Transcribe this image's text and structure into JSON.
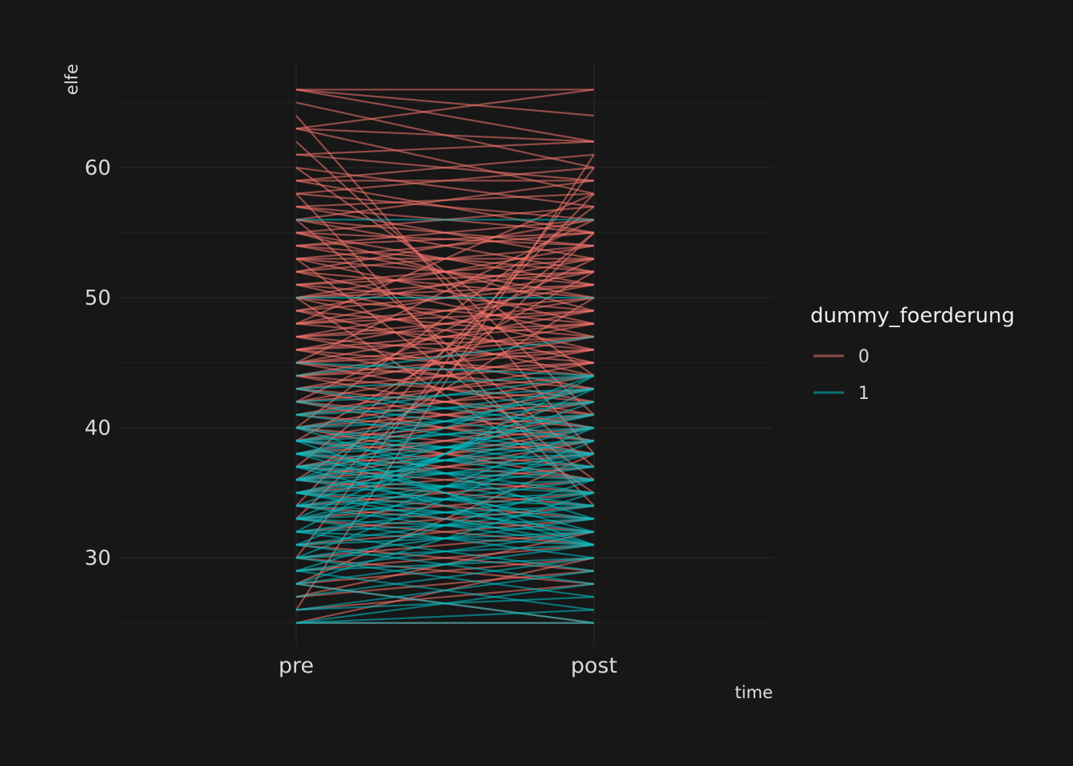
{
  "chart_data": {
    "type": "line",
    "subtype": "paired slope lines",
    "x": [
      "pre",
      "post"
    ],
    "xlabel": "time",
    "ylabel": "elfe",
    "ylim": [
      24,
      67
    ],
    "yticks": [
      30,
      40,
      50,
      60
    ],
    "grid": true,
    "legend": {
      "title": "dummy_foerderung",
      "placement": "right",
      "entries": [
        {
          "label": "0",
          "color": "#F8766D"
        },
        {
          "label": "1",
          "color": "#00BFC4"
        }
      ]
    },
    "series": [
      {
        "name": "0",
        "color": "#F8766D",
        "pairs": [
          [
            66,
            66
          ],
          [
            66,
            62
          ],
          [
            66,
            64
          ],
          [
            65,
            60
          ],
          [
            63,
            66
          ],
          [
            63,
            62
          ],
          [
            63,
            58
          ],
          [
            61,
            62
          ],
          [
            61,
            59
          ],
          [
            60,
            57
          ],
          [
            59,
            61
          ],
          [
            59,
            55
          ],
          [
            59,
            59
          ],
          [
            58,
            56
          ],
          [
            58,
            60
          ],
          [
            57,
            53
          ],
          [
            57,
            55
          ],
          [
            57,
            58
          ],
          [
            56,
            54
          ],
          [
            56,
            52
          ],
          [
            56,
            59
          ],
          [
            55,
            57
          ],
          [
            55,
            51
          ],
          [
            55,
            54
          ],
          [
            55,
            49
          ],
          [
            54,
            56
          ],
          [
            54,
            52
          ],
          [
            54,
            50
          ],
          [
            54,
            55
          ],
          [
            53,
            51
          ],
          [
            53,
            55
          ],
          [
            53,
            48
          ],
          [
            53,
            53
          ],
          [
            52,
            54
          ],
          [
            52,
            50
          ],
          [
            52,
            47
          ],
          [
            52,
            56
          ],
          [
            51,
            53
          ],
          [
            51,
            49
          ],
          [
            51,
            52
          ],
          [
            51,
            46
          ],
          [
            50,
            52
          ],
          [
            50,
            48
          ],
          [
            50,
            51
          ],
          [
            50,
            45
          ],
          [
            50,
            54
          ],
          [
            49,
            51
          ],
          [
            49,
            47
          ],
          [
            49,
            53
          ],
          [
            49,
            44
          ],
          [
            48,
            50
          ],
          [
            48,
            46
          ],
          [
            48,
            52
          ],
          [
            48,
            49
          ],
          [
            47,
            49
          ],
          [
            47,
            45
          ],
          [
            47,
            51
          ],
          [
            47,
            43
          ],
          [
            47,
            48
          ],
          [
            46,
            48
          ],
          [
            46,
            44
          ],
          [
            46,
            50
          ],
          [
            46,
            42
          ],
          [
            46,
            47
          ],
          [
            45,
            47
          ],
          [
            45,
            43
          ],
          [
            45,
            49
          ],
          [
            45,
            41
          ],
          [
            45,
            46
          ],
          [
            44,
            46
          ],
          [
            44,
            42
          ],
          [
            44,
            48
          ],
          [
            44,
            40
          ],
          [
            44,
            45
          ],
          [
            43,
            45
          ],
          [
            43,
            41
          ],
          [
            43,
            47
          ],
          [
            43,
            39
          ],
          [
            42,
            44
          ],
          [
            42,
            40
          ],
          [
            42,
            46
          ],
          [
            42,
            38
          ],
          [
            41,
            43
          ],
          [
            41,
            39
          ],
          [
            41,
            45
          ],
          [
            40,
            42
          ],
          [
            40,
            38
          ],
          [
            40,
            44
          ],
          [
            40,
            36
          ],
          [
            39,
            41
          ],
          [
            39,
            37
          ],
          [
            39,
            43
          ],
          [
            38,
            40
          ],
          [
            38,
            36
          ],
          [
            38,
            42
          ],
          [
            37,
            39
          ],
          [
            37,
            35
          ],
          [
            37,
            41
          ],
          [
            36,
            38
          ],
          [
            36,
            34
          ],
          [
            36,
            40
          ],
          [
            35,
            37
          ],
          [
            35,
            33
          ],
          [
            35,
            39
          ],
          [
            34,
            36
          ],
          [
            34,
            32
          ],
          [
            33,
            35
          ],
          [
            33,
            31
          ],
          [
            32,
            34
          ],
          [
            31,
            33
          ],
          [
            31,
            29
          ],
          [
            30,
            32
          ],
          [
            30,
            28
          ],
          [
            29,
            31
          ],
          [
            28,
            30
          ],
          [
            28,
            25
          ],
          [
            27,
            32
          ],
          [
            27,
            29
          ],
          [
            26,
            28
          ],
          [
            25,
            25
          ],
          [
            25,
            30
          ],
          [
            30,
            60
          ],
          [
            28,
            38
          ],
          [
            33,
            55
          ],
          [
            34,
            58
          ],
          [
            62,
            41
          ],
          [
            58,
            34
          ],
          [
            56,
            37
          ],
          [
            53,
            36
          ],
          [
            50,
            35
          ],
          [
            60,
            44
          ],
          [
            26,
            61
          ],
          [
            64,
            38
          ],
          [
            48,
            58
          ],
          [
            45,
            56
          ],
          [
            42,
            53
          ],
          [
            40,
            57
          ],
          [
            39,
            52
          ],
          [
            37,
            55
          ],
          [
            36,
            50
          ]
        ]
      },
      {
        "name": "1",
        "color": "#00BFC4",
        "pairs": [
          [
            44,
            47
          ],
          [
            43,
            44
          ],
          [
            43,
            40
          ],
          [
            42,
            43
          ],
          [
            42,
            39
          ],
          [
            41,
            44
          ],
          [
            41,
            38
          ],
          [
            41,
            42
          ],
          [
            40,
            41
          ],
          [
            40,
            37
          ],
          [
            40,
            43
          ],
          [
            39,
            42
          ],
          [
            39,
            36
          ],
          [
            39,
            40
          ],
          [
            39,
            38
          ],
          [
            38,
            41
          ],
          [
            38,
            35
          ],
          [
            38,
            39
          ],
          [
            38,
            37
          ],
          [
            38,
            43
          ],
          [
            37,
            40
          ],
          [
            37,
            34
          ],
          [
            37,
            38
          ],
          [
            37,
            36
          ],
          [
            36,
            39
          ],
          [
            36,
            33
          ],
          [
            36,
            37
          ],
          [
            36,
            35
          ],
          [
            36,
            41
          ],
          [
            35,
            38
          ],
          [
            35,
            32
          ],
          [
            35,
            36
          ],
          [
            35,
            34
          ],
          [
            35,
            40
          ],
          [
            34,
            37
          ],
          [
            34,
            31
          ],
          [
            34,
            35
          ],
          [
            34,
            33
          ],
          [
            33,
            36
          ],
          [
            33,
            30
          ],
          [
            33,
            34
          ],
          [
            33,
            32
          ],
          [
            33,
            38
          ],
          [
            32,
            35
          ],
          [
            32,
            29
          ],
          [
            32,
            33
          ],
          [
            32,
            31
          ],
          [
            31,
            34
          ],
          [
            31,
            28
          ],
          [
            31,
            32
          ],
          [
            30,
            33
          ],
          [
            30,
            27
          ],
          [
            30,
            31
          ],
          [
            29,
            32
          ],
          [
            29,
            26
          ],
          [
            29,
            30
          ],
          [
            28,
            31
          ],
          [
            28,
            25
          ],
          [
            28,
            35
          ],
          [
            27,
            30
          ],
          [
            26,
            29
          ],
          [
            26,
            27
          ],
          [
            25,
            26
          ],
          [
            25,
            25
          ],
          [
            25,
            28
          ],
          [
            56,
            56
          ],
          [
            50,
            50
          ],
          [
            45,
            44
          ],
          [
            36,
            44
          ],
          [
            34,
            42
          ],
          [
            33,
            43
          ],
          [
            32,
            44
          ],
          [
            31,
            40
          ],
          [
            30,
            39
          ],
          [
            29,
            36
          ],
          [
            35,
            31
          ],
          [
            37,
            31
          ],
          [
            40,
            33
          ],
          [
            39,
            31
          ],
          [
            38,
            32
          ]
        ]
      }
    ]
  }
}
